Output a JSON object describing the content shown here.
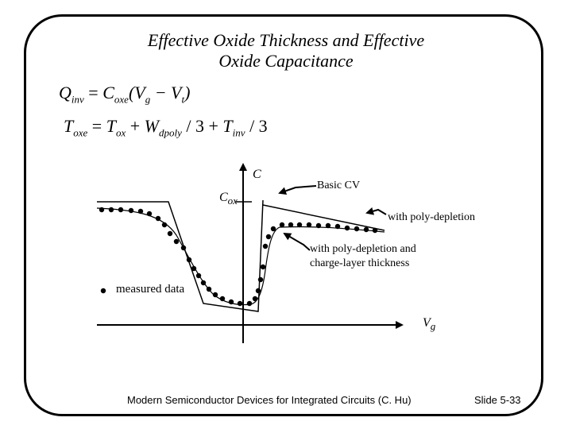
{
  "slide": {
    "title_line1": "Effective Oxide Thickness and Effective",
    "title_line2": "Oxide Capacitance",
    "footer": "Modern Semiconductor Devices for Integrated Circuits  (C. Hu)",
    "slide_number": "Slide 5-33"
  },
  "equations": {
    "eq1": {
      "Q": "Q",
      "Q_sub": "inv",
      "eq": " = ",
      "C": "C",
      "C_sub": "oxe",
      "rest1": "(V",
      "Vg_sub": "g",
      "rest2": " − V",
      "Vt_sub": "t",
      "rest3": ")"
    },
    "eq2": {
      "T1": "T",
      "T1_sub": "oxe",
      "eq": "  = ",
      "T2": "T",
      "T2_sub": "ox",
      "plus1": "  + ",
      "W": "W",
      "W_sub": "dpoly",
      "div1": " / 3 + ",
      "T3": "T",
      "T3_sub": "inv",
      "div2": "  / 3"
    }
  },
  "diagram": {
    "axis_c": "C",
    "axis_vg": "V",
    "axis_vg_sub": "g",
    "cox": "C",
    "cox_sub": "ox",
    "label_basic_cv": "Basic CV",
    "label_poly_depletion": "with poly-depletion",
    "label_charge_layer_line1": "with poly-depletion and",
    "label_charge_layer_line2": "charge-layer thickness",
    "legend_measured": "measured data"
  }
}
